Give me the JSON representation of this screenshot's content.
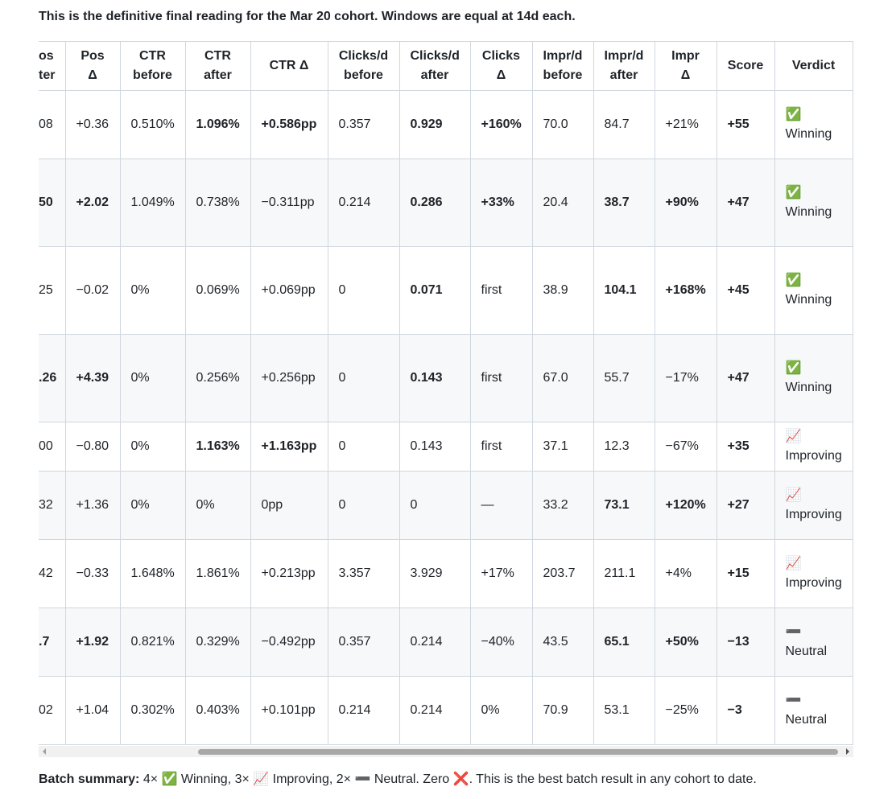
{
  "intro": "This is the definitive final reading for the Mar 20 cohort. Windows are equal at 14d each.",
  "table": {
    "header": [
      [
        "os",
        "ter"
      ],
      [
        "Pos",
        "Δ"
      ],
      [
        "CTR",
        "before"
      ],
      [
        "CTR",
        "after"
      ],
      [
        "CTR Δ"
      ],
      [
        "Clicks/d",
        "before"
      ],
      [
        "Clicks/d",
        "after"
      ],
      [
        "Clicks",
        "Δ"
      ],
      [
        "Impr/d",
        "before"
      ],
      [
        "Impr/d",
        "after"
      ],
      [
        "Impr",
        "Δ"
      ],
      [
        "Score"
      ],
      [
        "Verdict"
      ]
    ],
    "rows": [
      [
        "08",
        "+0.36",
        "0.510%",
        {
          "text": "1.096%",
          "bold": true
        },
        {
          "text": "+0.586pp",
          "bold": true
        },
        "0.357",
        {
          "text": "0.929",
          "bold": true
        },
        {
          "text": "+160%",
          "bold": true
        },
        "70.0",
        "84.7",
        "+21%",
        {
          "text": "+55",
          "bold": true
        },
        "✅ Winning"
      ],
      [
        {
          "text": "50",
          "bold": true
        },
        {
          "text": "+2.02",
          "bold": true
        },
        "1.049%",
        "0.738%",
        "−0.311pp",
        "0.214",
        {
          "text": "0.286",
          "bold": true
        },
        {
          "text": "+33%",
          "bold": true
        },
        "20.4",
        {
          "text": "38.7",
          "bold": true
        },
        {
          "text": "+90%",
          "bold": true
        },
        {
          "text": "+47",
          "bold": true
        },
        "✅ Winning"
      ],
      [
        "25",
        "−0.02",
        "0%",
        "0.069%",
        "+0.069pp",
        "0",
        {
          "text": "0.071",
          "bold": true
        },
        "first",
        "38.9",
        {
          "text": "104.1",
          "bold": true
        },
        {
          "text": "+168%",
          "bold": true
        },
        {
          "text": "+45",
          "bold": true
        },
        "✅ Winning"
      ],
      [
        {
          "text": ".26",
          "bold": true
        },
        {
          "text": "+4.39",
          "bold": true
        },
        "0%",
        "0.256%",
        "+0.256pp",
        "0",
        {
          "text": "0.143",
          "bold": true
        },
        "first",
        "67.0",
        "55.7",
        "−17%",
        {
          "text": "+47",
          "bold": true
        },
        "✅ Winning"
      ],
      [
        "00",
        "−0.80",
        "0%",
        {
          "text": "1.163%",
          "bold": true
        },
        {
          "text": "+1.163pp",
          "bold": true
        },
        "0",
        "0.143",
        "first",
        "37.1",
        "12.3",
        "−67%",
        {
          "text": "+35",
          "bold": true
        },
        "📈 Improving"
      ],
      [
        "32",
        "+1.36",
        "0%",
        "0%",
        "0pp",
        "0",
        "0",
        "—",
        "33.2",
        {
          "text": "73.1",
          "bold": true
        },
        {
          "text": "+120%",
          "bold": true
        },
        {
          "text": "+27",
          "bold": true
        },
        "📈 Improving"
      ],
      [
        "42",
        "−0.33",
        "1.648%",
        "1.861%",
        "+0.213pp",
        "3.357",
        "3.929",
        "+17%",
        "203.7",
        "211.1",
        "+4%",
        {
          "text": "+15",
          "bold": true
        },
        "📈 Improving"
      ],
      [
        {
          "text": ".7",
          "bold": true
        },
        {
          "text": "+1.92",
          "bold": true
        },
        "0.821%",
        "0.329%",
        "−0.492pp",
        "0.357",
        "0.214",
        "−40%",
        "43.5",
        {
          "text": "65.1",
          "bold": true
        },
        {
          "text": "+50%",
          "bold": true
        },
        {
          "text": "−13",
          "bold": true
        },
        "➖ Neutral"
      ],
      [
        "02",
        "+1.04",
        "0.302%",
        "0.403%",
        "+0.101pp",
        "0.214",
        "0.214",
        "0%",
        "70.9",
        "53.1",
        "−25%",
        {
          "text": "−3",
          "bold": true
        },
        "➖ Neutral"
      ]
    ]
  },
  "summary": {
    "label": "Batch summary:",
    "text": "4× ✅ Winning, 3× 📈 Improving, 2× ➖ Neutral. Zero ❌. This is the best batch result in any cohort to date."
  }
}
